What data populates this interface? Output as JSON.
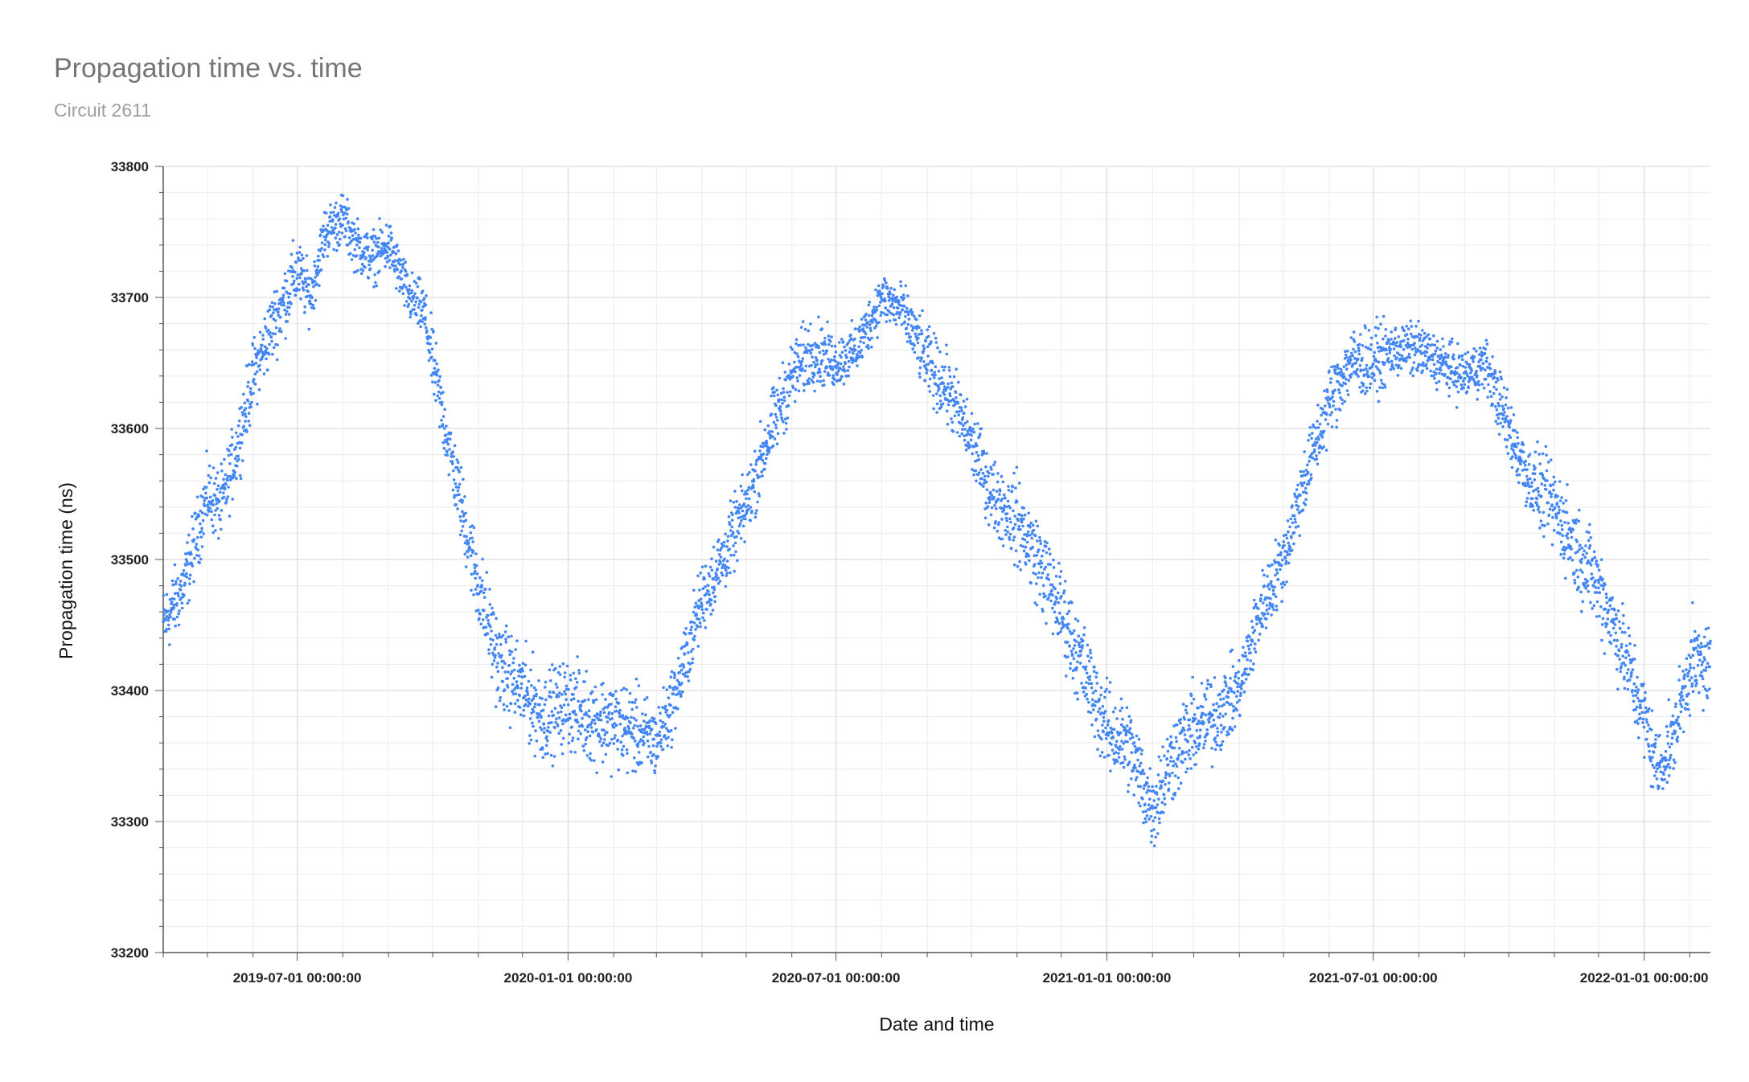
{
  "chart_data": {
    "type": "scatter",
    "title": "Propagation time vs. time",
    "subtitle": "Circuit 2611",
    "xlabel": "Date and time",
    "ylabel": "Propagation time (ns)",
    "ylim": [
      33200,
      33800
    ],
    "yticks": [
      "33200",
      "33300",
      "33400",
      "33500",
      "33600",
      "33700",
      "33800"
    ],
    "xlim": [
      "2019-04-01",
      "2022-02-15"
    ],
    "xticks": [
      {
        "date": "2019-07-01",
        "label": "2019-07-01 00:00:00"
      },
      {
        "date": "2020-01-01",
        "label": "2020-01-01 00:00:00"
      },
      {
        "date": "2020-07-01",
        "label": "2020-07-01 00:00:00"
      },
      {
        "date": "2021-01-01",
        "label": "2021-01-01 00:00:00"
      },
      {
        "date": "2021-07-01",
        "label": "2021-07-01 00:00:00"
      },
      {
        "date": "2022-01-01",
        "label": "2022-01-01 00:00:00"
      }
    ],
    "grid": true,
    "marker_color": "#4285f4",
    "series": [
      {
        "x": [
          "2019-04-01",
          "2019-04-15",
          "2019-05-01",
          "2019-05-10",
          "2019-05-20",
          "2019-06-01",
          "2019-06-15",
          "2019-07-01",
          "2019-07-10",
          "2019-07-20",
          "2019-08-01",
          "2019-08-10",
          "2019-08-20",
          "2019-09-01",
          "2019-09-15",
          "2019-09-25",
          "2019-10-01",
          "2019-10-15",
          "2019-11-01",
          "2019-11-15",
          "2019-12-01",
          "2019-12-15",
          "2020-01-01",
          "2020-01-15",
          "2020-02-01",
          "2020-02-15",
          "2020-03-01",
          "2020-03-15",
          "2020-04-01",
          "2020-04-15",
          "2020-05-01",
          "2020-05-15",
          "2020-06-01",
          "2020-06-15",
          "2020-07-01",
          "2020-07-15",
          "2020-08-01",
          "2020-08-15",
          "2020-09-01",
          "2020-09-15",
          "2020-10-01",
          "2020-10-15",
          "2020-11-01",
          "2020-11-15",
          "2020-12-01",
          "2020-12-15",
          "2021-01-01",
          "2021-01-15",
          "2021-02-01",
          "2021-02-15",
          "2021-03-01",
          "2021-03-15",
          "2021-04-01",
          "2021-04-15",
          "2021-05-01",
          "2021-05-15",
          "2021-06-01",
          "2021-06-15",
          "2021-07-01",
          "2021-07-15",
          "2021-08-01",
          "2021-08-15",
          "2021-09-01",
          "2021-09-15",
          "2021-10-01",
          "2021-10-15",
          "2021-11-01",
          "2021-11-15",
          "2021-12-01",
          "2021-12-15",
          "2022-01-01",
          "2022-01-10",
          "2022-01-20",
          "2022-02-01",
          "2022-02-15"
        ],
        "y": [
          33450,
          33480,
          33550,
          33540,
          33580,
          33640,
          33680,
          33720,
          33700,
          33750,
          33760,
          33740,
          33730,
          33740,
          33700,
          33690,
          33650,
          33570,
          33480,
          33420,
          33400,
          33380,
          33390,
          33380,
          33375,
          33370,
          33360,
          33400,
          33470,
          33500,
          33540,
          33590,
          33640,
          33660,
          33650,
          33660,
          33700,
          33690,
          33650,
          33630,
          33590,
          33550,
          33530,
          33500,
          33460,
          33420,
          33370,
          33360,
          33310,
          33350,
          33370,
          33380,
          33400,
          33460,
          33500,
          33560,
          33620,
          33650,
          33650,
          33660,
          33660,
          33650,
          33640,
          33650,
          33600,
          33560,
          33540,
          33510,
          33480,
          33440,
          33380,
          33340,
          33360,
          33420,
          33420
        ],
        "spread": [
          20,
          20,
          20,
          20,
          20,
          20,
          20,
          20,
          15,
          15,
          15,
          15,
          15,
          15,
          15,
          15,
          20,
          20,
          25,
          25,
          25,
          25,
          25,
          25,
          25,
          25,
          20,
          20,
          20,
          20,
          20,
          20,
          20,
          20,
          15,
          15,
          15,
          15,
          20,
          20,
          20,
          20,
          25,
          25,
          25,
          25,
          25,
          25,
          25,
          25,
          25,
          25,
          20,
          20,
          20,
          20,
          20,
          20,
          20,
          15,
          15,
          15,
          15,
          15,
          20,
          20,
          25,
          25,
          25,
          25,
          25,
          20,
          20,
          25,
          25
        ]
      }
    ]
  }
}
